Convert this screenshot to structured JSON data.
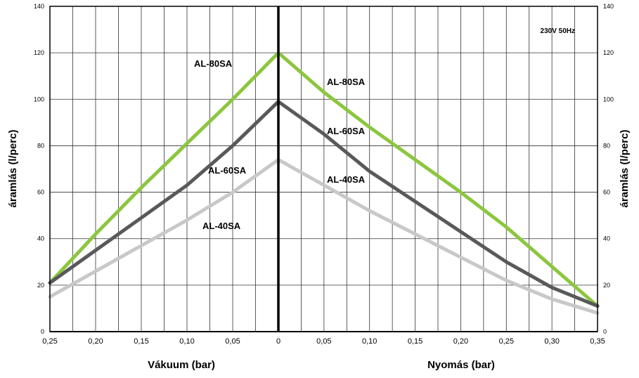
{
  "chart_data": {
    "type": "line",
    "note": "230V 50Hz",
    "ylabel_left": "áramlás (l/perc)",
    "ylabel_right": "áramlás (l/perc)",
    "xlabel_left": "Vákuum (bar)",
    "xlabel_right": "Nyomás (bar)",
    "ylim": [
      0,
      140
    ],
    "y_ticks": [
      "0",
      "20",
      "40",
      "60",
      "80",
      "100",
      "120",
      "140"
    ],
    "x_ticks_vacuum": [
      "0,25",
      "0,20",
      "0,15",
      "0,10",
      "0,05",
      "0"
    ],
    "x_ticks_pressure": [
      "0,05",
      "0,10",
      "0,15",
      "0,20",
      "0,25",
      "0,30",
      "0,35"
    ],
    "vacuum_range": [
      0.25,
      0
    ],
    "pressure_range": [
      0,
      0.35
    ],
    "grid": true,
    "series": [
      {
        "name": "AL-80SA",
        "color": "#8cc63f",
        "vacuum": [
          [
            0.25,
            21
          ],
          [
            0.2,
            42
          ],
          [
            0.15,
            62
          ],
          [
            0.1,
            81
          ],
          [
            0.05,
            100
          ],
          [
            0.0,
            120
          ]
        ],
        "pressure": [
          [
            0.0,
            120
          ],
          [
            0.05,
            103
          ],
          [
            0.1,
            88
          ],
          [
            0.15,
            74
          ],
          [
            0.2,
            60
          ],
          [
            0.25,
            45
          ],
          [
            0.3,
            28
          ],
          [
            0.35,
            11
          ]
        ]
      },
      {
        "name": "AL-60SA",
        "color": "#58595b",
        "vacuum": [
          [
            0.25,
            21
          ],
          [
            0.2,
            35
          ],
          [
            0.15,
            49
          ],
          [
            0.1,
            63
          ],
          [
            0.05,
            80
          ],
          [
            0.0,
            99
          ]
        ],
        "pressure": [
          [
            0.0,
            99
          ],
          [
            0.05,
            85
          ],
          [
            0.1,
            69
          ],
          [
            0.15,
            56
          ],
          [
            0.2,
            43
          ],
          [
            0.25,
            30
          ],
          [
            0.3,
            19
          ],
          [
            0.35,
            11
          ]
        ]
      },
      {
        "name": "AL-40SA",
        "color": "#c7c8ca",
        "vacuum": [
          [
            0.25,
            15
          ],
          [
            0.2,
            26
          ],
          [
            0.15,
            37
          ],
          [
            0.1,
            48
          ],
          [
            0.05,
            60
          ],
          [
            0.0,
            74
          ]
        ],
        "pressure": [
          [
            0.0,
            74
          ],
          [
            0.05,
            63
          ],
          [
            0.1,
            52
          ],
          [
            0.15,
            42
          ],
          [
            0.2,
            32
          ],
          [
            0.25,
            22
          ],
          [
            0.3,
            14
          ],
          [
            0.35,
            8
          ]
        ]
      }
    ],
    "labels_vacuum": [
      "AL-80SA",
      "AL-60SA",
      "AL-40SA"
    ],
    "labels_pressure": [
      "AL-80SA",
      "AL-60SA",
      "AL-40SA"
    ]
  }
}
